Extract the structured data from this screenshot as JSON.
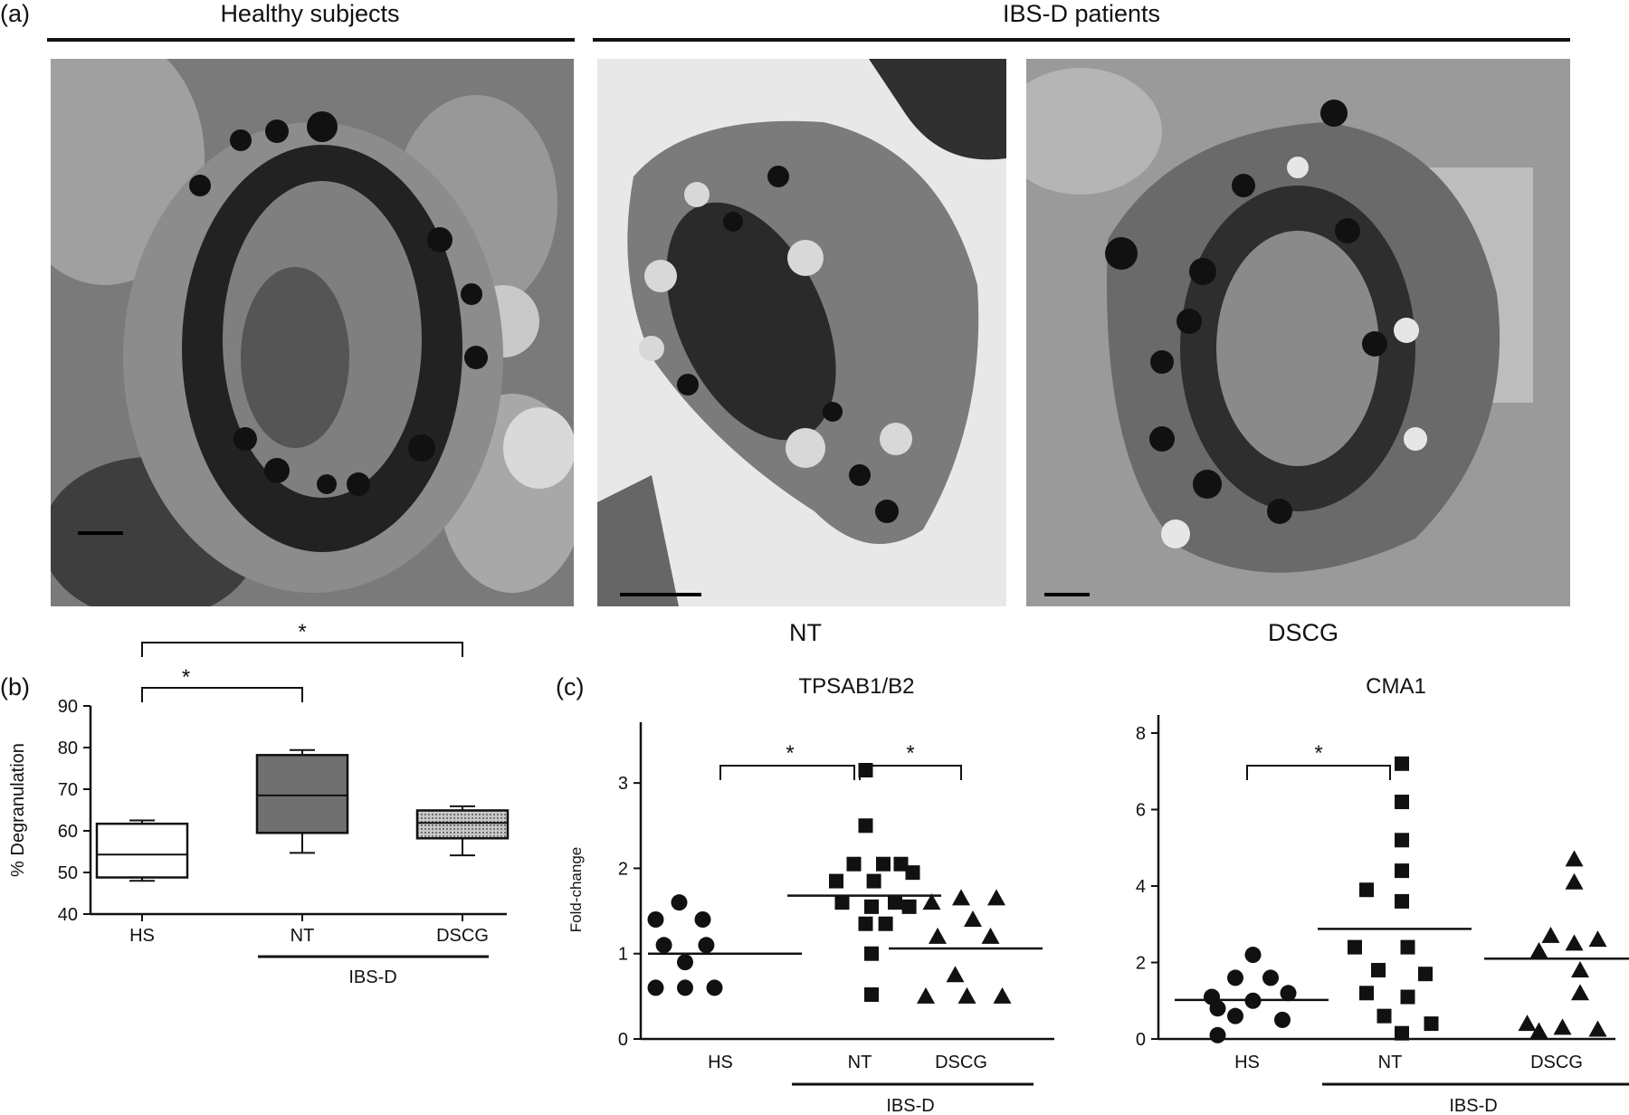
{
  "panel_a": {
    "label": "(a)",
    "group_left": "Healthy subjects",
    "group_right": "IBS-D patients",
    "cap_nt": "NT",
    "cap_dscg": "DSCG"
  },
  "panel_b": {
    "label": "(b)"
  },
  "panel_c": {
    "label": "(c)"
  },
  "chart_data": [
    {
      "type": "box",
      "panel": "b",
      "ylabel": "% Degranulation",
      "ylim": [
        40,
        90
      ],
      "yticks": [
        "40",
        "50",
        "60",
        "70",
        "80",
        "90"
      ],
      "categories": [
        "HS",
        "NT",
        "DSCG"
      ],
      "group_label": "IBS-D",
      "boxes": [
        {
          "name": "HS",
          "min": 48,
          "q1": 48.8,
          "median": 54.3,
          "q3": 61.7,
          "max": 62.5,
          "fill": "#ffffff"
        },
        {
          "name": "NT",
          "min": 54.7,
          "q1": 59.5,
          "median": 68.5,
          "q3": 78.2,
          "max": 79.4,
          "fill": "#707070"
        },
        {
          "name": "DSCG",
          "min": 54.1,
          "q1": 58.2,
          "median": 61.9,
          "q3": 64.9,
          "max": 65.9,
          "fill": "#b8b8b8"
        }
      ],
      "significance": [
        {
          "from": "HS",
          "to": "NT",
          "label": "*"
        },
        {
          "from": "HS",
          "to": "DSCG",
          "label": "*"
        }
      ]
    },
    {
      "type": "scatter",
      "panel": "c",
      "title": "TPSAB1/B2",
      "ylabel": "Fold-change",
      "ylim": [
        0,
        3.5
      ],
      "yticks": [
        "0",
        "1",
        "2",
        "3"
      ],
      "categories": [
        "HS",
        "NT",
        "DSCG"
      ],
      "group_label": "IBS-D",
      "series": [
        {
          "name": "HS",
          "marker": "circle",
          "mean": 1.0,
          "points": [
            [
              -0.35,
              1.6
            ],
            [
              -0.55,
              1.4
            ],
            [
              -0.15,
              1.4
            ],
            [
              -0.48,
              1.1
            ],
            [
              -0.12,
              1.1
            ],
            [
              -0.3,
              0.9
            ],
            [
              -0.55,
              0.6
            ],
            [
              -0.3,
              0.6
            ],
            [
              -0.05,
              0.6
            ]
          ]
        },
        {
          "name": "NT",
          "marker": "square",
          "mean": 1.68,
          "points": [
            [
              0.05,
              3.15
            ],
            [
              0.05,
              2.5
            ],
            [
              -0.05,
              2.05
            ],
            [
              0.2,
              2.05
            ],
            [
              0.35,
              2.05
            ],
            [
              -0.2,
              1.85
            ],
            [
              0.12,
              1.85
            ],
            [
              0.45,
              1.95
            ],
            [
              -0.15,
              1.6
            ],
            [
              0.1,
              1.55
            ],
            [
              0.3,
              1.6
            ],
            [
              0.42,
              1.55
            ],
            [
              0.05,
              1.35
            ],
            [
              0.22,
              1.35
            ],
            [
              0.1,
              1.0
            ],
            [
              0.1,
              0.52
            ]
          ]
        },
        {
          "name": "DSCG",
          "marker": "triangle",
          "mean": 1.06,
          "points": [
            [
              0.0,
              1.65
            ],
            [
              0.3,
              1.65
            ],
            [
              -0.25,
              1.6
            ],
            [
              0.1,
              1.4
            ],
            [
              -0.2,
              1.2
            ],
            [
              0.25,
              1.2
            ],
            [
              -0.05,
              0.75
            ],
            [
              -0.3,
              0.5
            ],
            [
              0.05,
              0.5
            ],
            [
              0.35,
              0.5
            ]
          ]
        }
      ],
      "significance": [
        {
          "from": "HS",
          "to": "NT",
          "label": "*"
        },
        {
          "from": "NT",
          "to": "DSCG",
          "label": "*"
        }
      ]
    },
    {
      "type": "scatter",
      "panel": "c",
      "title": "CMA1",
      "ylabel": "",
      "ylim": [
        0,
        8
      ],
      "yticks": [
        "0",
        "2",
        "4",
        "6",
        "8"
      ],
      "categories": [
        "HS",
        "NT",
        "DSCG"
      ],
      "group_label": "IBS-D",
      "series": [
        {
          "name": "HS",
          "marker": "circle",
          "mean": 1.02,
          "points": [
            [
              0.05,
              2.2
            ],
            [
              -0.1,
              1.6
            ],
            [
              0.2,
              1.6
            ],
            [
              0.35,
              1.2
            ],
            [
              -0.3,
              1.1
            ],
            [
              0.05,
              1.0
            ],
            [
              -0.25,
              0.8
            ],
            [
              -0.1,
              0.6
            ],
            [
              0.3,
              0.5
            ],
            [
              -0.25,
              0.1
            ]
          ]
        },
        {
          "name": "NT",
          "marker": "square",
          "mean": 2.88,
          "points": [
            [
              0.1,
              7.2
            ],
            [
              0.1,
              6.2
            ],
            [
              0.1,
              5.2
            ],
            [
              0.1,
              4.4
            ],
            [
              -0.2,
              3.9
            ],
            [
              0.1,
              3.6
            ],
            [
              -0.3,
              2.4
            ],
            [
              0.15,
              2.4
            ],
            [
              -0.1,
              1.8
            ],
            [
              0.3,
              1.7
            ],
            [
              -0.2,
              1.2
            ],
            [
              0.15,
              1.1
            ],
            [
              -0.05,
              0.6
            ],
            [
              0.35,
              0.4
            ],
            [
              0.1,
              0.15
            ]
          ]
        },
        {
          "name": "DSCG",
          "marker": "triangle",
          "mean": 2.1,
          "points": [
            [
              0.15,
              4.7
            ],
            [
              0.15,
              4.1
            ],
            [
              -0.05,
              2.7
            ],
            [
              0.35,
              2.6
            ],
            [
              0.15,
              2.5
            ],
            [
              -0.15,
              2.3
            ],
            [
              0.2,
              1.8
            ],
            [
              0.2,
              1.2
            ],
            [
              -0.25,
              0.4
            ],
            [
              0.05,
              0.3
            ],
            [
              0.35,
              0.25
            ],
            [
              -0.15,
              0.2
            ]
          ]
        }
      ],
      "significance": [
        {
          "from": "HS",
          "to": "NT",
          "label": "*"
        }
      ]
    }
  ]
}
